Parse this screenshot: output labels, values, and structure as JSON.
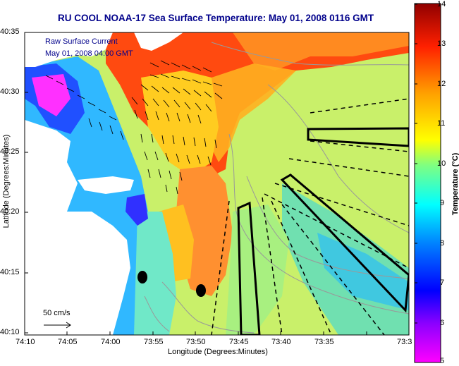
{
  "title": "RU COOL  NOAA-17  Sea Surface Temperature:  May 01, 2008 0116 GMT",
  "overlay": {
    "line1": "Raw Surface Current",
    "line2": "May 01, 2008 04:00 GMT"
  },
  "axes": {
    "xlabel": "Longitude (Degrees:Minutes)",
    "ylabel": "Latitude (Degrees:Minutes)",
    "xticks": [
      "74:10",
      "74:05",
      "74:00",
      "73:55",
      "73:50",
      "73:45",
      "73:40",
      "73:35",
      "73:3"
    ],
    "yticks": [
      "40:35",
      "40:30",
      "40:25",
      "40:20",
      "40:15",
      "40:10"
    ]
  },
  "scale_arrow_label": "50 cm/s",
  "colorbar": {
    "label": "Temperature (°C)",
    "ticks": [
      "14",
      "13",
      "12",
      "11",
      "10",
      "9",
      "8",
      "7",
      "6",
      "5"
    ],
    "min": 5,
    "max": 14
  },
  "colors": {
    "title": "#00008b",
    "warm": "#ff3a00",
    "cool": "#00c8ff"
  }
}
